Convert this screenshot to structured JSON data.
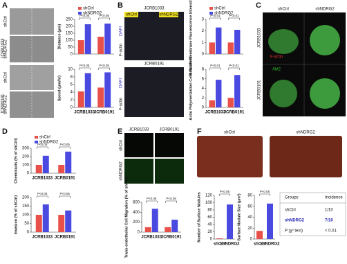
{
  "panel_letters": [
    "A",
    "B",
    "C",
    "D",
    "E",
    "F"
  ],
  "image_labels": [
    "shCtrl",
    "JCRB1033",
    "shNDRG2",
    "shCtrl",
    "JCRB0191",
    "shNDRG2",
    "JCRB1033",
    "shCtrl",
    "shNDRG2",
    "DAPI",
    "F-actin",
    "JCRB0191",
    "DAPI",
    "F-actin",
    "shCtrl",
    "shNDRG2",
    "JCRB1033",
    "JCRB0191",
    "F-actin",
    "Akt2",
    "JCRB1033",
    "JCRB0191",
    "shCtrl",
    "shNDRG2",
    "shCtrl",
    "shNDRG2"
  ],
  "table": {
    "header": [
      "Groups",
      "Incidence"
    ],
    "rows": [
      [
        "shCtrl",
        "1/10"
      ],
      [
        "shNDRG2",
        "7/10"
      ],
      [
        "P (χ² test)",
        "< 0.01"
      ]
    ]
  },
  "chart_data": [
    {
      "type": "bar",
      "ylabel": "Distance (μm)",
      "ylim": [
        0,
        250
      ],
      "yticks": [
        0,
        50,
        100,
        150,
        200,
        250
      ],
      "annotations": [
        "P<0.05",
        "P<0.05"
      ],
      "series": [
        {
          "name": "shCtrl",
          "color": "#e8504a",
          "values": [
            100,
            125
          ]
        },
        {
          "name": "shNDRG2",
          "color": "#4a4ae0",
          "values": [
            215,
            220
          ]
        }
      ]
    },
    {
      "type": "bar",
      "ylabel": "Speed (μm/hr)",
      "ylim": [
        0,
        10
      ],
      "yticks": [
        0,
        2,
        4,
        6,
        8,
        10
      ],
      "annotations": [
        "P<0.05",
        "P<0.05"
      ],
      "categories": [
        "JCRB1033",
        "JCRB0191"
      ],
      "series": [
        {
          "color": "#e8504a",
          "values": [
            4.2,
            5.2
          ]
        },
        {
          "color": "#4a4ae0",
          "values": [
            9,
            9.2
          ]
        }
      ]
    },
    {
      "type": "bar",
      "ylabel": "Relative Membrane Fluorescence Intensity",
      "ylim": [
        0,
        3
      ],
      "yticks": [
        0,
        1,
        2,
        3
      ],
      "annotations": [
        "P<0.01",
        "P<0.01"
      ],
      "series": [
        {
          "name": "shCtrl",
          "color": "#e8504a",
          "values": [
            1,
            1
          ]
        },
        {
          "name": "shNDRG2",
          "color": "#4a4ae0",
          "values": [
            2.3,
            2.1
          ]
        }
      ]
    },
    {
      "type": "bar",
      "ylabel": "Actin Polymerization Cells No./field",
      "ylim": [
        0,
        8
      ],
      "yticks": [
        0,
        2,
        4,
        6,
        8
      ],
      "annotations": [
        "P<0.01",
        "P<0.01"
      ],
      "categories": [
        "JCRB1033",
        "JCRB0191"
      ],
      "series": [
        {
          "color": "#e8504a",
          "values": [
            1.5,
            2
          ]
        },
        {
          "color": "#4a4ae0",
          "values": [
            5.8,
            6.8
          ]
        }
      ]
    },
    {
      "type": "bar",
      "ylabel": "Chemotaxis (% of shCtrl)",
      "ylim": [
        0,
        300
      ],
      "yticks": [
        0,
        100,
        200,
        300
      ],
      "annotations": [
        "P<0.05",
        "P<0.05"
      ],
      "categories": [
        "JCRB1033",
        "JCRB0191"
      ],
      "series": [
        {
          "name": "shCtrl",
          "color": "#e8504a",
          "values": [
            100,
            100
          ]
        },
        {
          "name": "shNDRG2",
          "color": "#4a4ae0",
          "values": [
            210,
            260
          ]
        }
      ]
    },
    {
      "type": "bar",
      "ylabel": "Invasion (% of shCtrl)",
      "ylim": [
        0,
        200
      ],
      "yticks": [
        0,
        50,
        100,
        150,
        200
      ],
      "annotations": [
        "P<0.05",
        "P<0.05"
      ],
      "categories": [
        "JCRB1033",
        "JCRB0191"
      ],
      "series": [
        {
          "color": "#e8504a",
          "values": [
            100,
            100
          ]
        },
        {
          "color": "#4a4ae0",
          "values": [
            160,
            125
          ]
        }
      ]
    },
    {
      "type": "bar",
      "ylabel": "Trans-endothelial Cell Migration (% of shCtrl)",
      "ylim": [
        0,
        600
      ],
      "yticks": [
        0,
        200,
        400,
        600
      ],
      "annotations": [
        "P<0.05",
        "P<0.05"
      ],
      "categories": [
        "JCRB1033",
        "JCRB0191"
      ],
      "series": [
        {
          "color": "#e8504a",
          "values": [
            100,
            100
          ]
        },
        {
          "color": "#4a4ae0",
          "values": [
            470,
            250
          ]
        }
      ]
    },
    {
      "type": "bar",
      "ylabel": "Number of Surface Nodules",
      "ylim": [
        0,
        120
      ],
      "yticks": [
        0,
        20,
        40,
        60,
        80,
        100,
        120
      ],
      "annotations": [
        "P<0.05"
      ],
      "categories": [
        "shCtrl",
        "shNDRG2"
      ],
      "series": [
        {
          "color": "#e8504a",
          "values": [
            2,
            null
          ]
        },
        {
          "color": "#4a4ae0",
          "values": [
            null,
            95
          ]
        }
      ]
    },
    {
      "type": "bar",
      "ylabel": "Surface Nodule Size (μm²)",
      "ylim": [
        0,
        80
      ],
      "yticks": [
        0,
        20,
        40,
        60,
        80
      ],
      "annotations": [
        "P<0.05"
      ],
      "categories": [
        "shCtrl",
        "shNDRG2"
      ],
      "series": [
        {
          "color": "#e8504a",
          "values": [
            15,
            null
          ]
        },
        {
          "color": "#4a4ae0",
          "values": [
            null,
            65
          ]
        }
      ]
    }
  ]
}
